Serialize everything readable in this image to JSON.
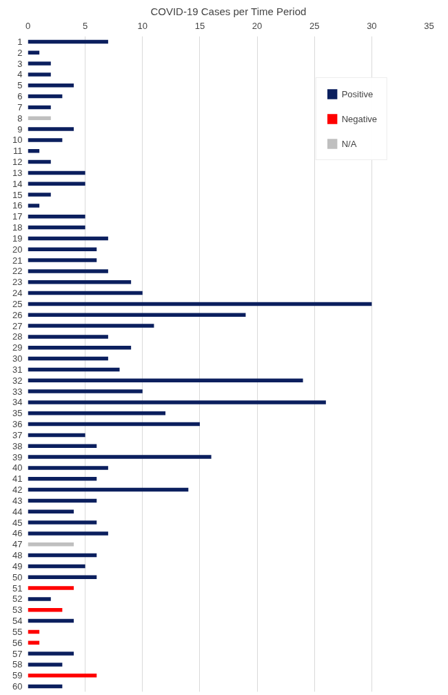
{
  "chart_data": {
    "type": "bar",
    "orientation": "horizontal",
    "title": "COVID-19 Cases per Time Period",
    "categories": [
      "1",
      "2",
      "3",
      "4",
      "5",
      "6",
      "7",
      "8",
      "9",
      "10",
      "11",
      "12",
      "13",
      "14",
      "15",
      "16",
      "17",
      "18",
      "19",
      "20",
      "21",
      "22",
      "23",
      "24",
      "25",
      "26",
      "27",
      "28",
      "29",
      "30",
      "31",
      "32",
      "33",
      "34",
      "35",
      "36",
      "37",
      "38",
      "39",
      "40",
      "41",
      "42",
      "43",
      "44",
      "45",
      "46",
      "47",
      "48",
      "49",
      "50",
      "51",
      "52",
      "53",
      "54",
      "55",
      "56",
      "57",
      "58",
      "59",
      "60"
    ],
    "series": [
      {
        "name": "Positive",
        "color": "#0b1f5e",
        "values": [
          7,
          1,
          2,
          2,
          4,
          3,
          2,
          null,
          4,
          3,
          1,
          2,
          5,
          5,
          2,
          1,
          5,
          5,
          7,
          6,
          6,
          7,
          9,
          10,
          30,
          19,
          11,
          7,
          9,
          7,
          8,
          24,
          10,
          26,
          12,
          15,
          5,
          6,
          16,
          7,
          6,
          14,
          6,
          4,
          6,
          7,
          null,
          6,
          5,
          6,
          null,
          2,
          null,
          4,
          null,
          null,
          4,
          3,
          null,
          3
        ]
      },
      {
        "name": "Negative",
        "color": "#ff0000",
        "values": [
          null,
          null,
          null,
          null,
          null,
          null,
          null,
          null,
          null,
          null,
          null,
          null,
          null,
          null,
          null,
          null,
          null,
          null,
          null,
          null,
          null,
          null,
          null,
          null,
          null,
          null,
          null,
          null,
          null,
          null,
          null,
          null,
          null,
          null,
          null,
          null,
          null,
          null,
          null,
          null,
          null,
          null,
          null,
          null,
          null,
          null,
          null,
          null,
          null,
          null,
          4,
          null,
          3,
          null,
          1,
          1,
          null,
          null,
          6,
          null
        ]
      },
      {
        "name": "N/A",
        "color": "#bfbfbf",
        "values": [
          null,
          null,
          null,
          null,
          null,
          null,
          null,
          2,
          null,
          null,
          null,
          null,
          null,
          null,
          null,
          null,
          null,
          null,
          null,
          null,
          null,
          null,
          null,
          null,
          null,
          null,
          null,
          null,
          null,
          null,
          null,
          null,
          null,
          null,
          null,
          null,
          null,
          null,
          null,
          null,
          null,
          null,
          null,
          null,
          null,
          null,
          4,
          null,
          null,
          null,
          null,
          null,
          null,
          null,
          null,
          null,
          null,
          null,
          null,
          null
        ]
      }
    ],
    "xlim": [
      0,
      35
    ],
    "xticks": [
      0,
      5,
      10,
      15,
      20,
      25,
      30,
      35
    ],
    "grid": "x",
    "legend": "top right"
  }
}
